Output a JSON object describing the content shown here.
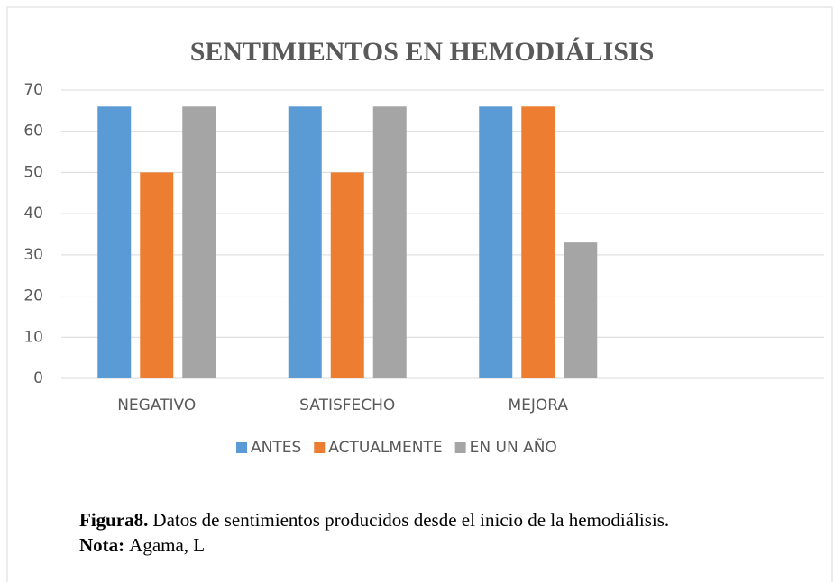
{
  "chart_data": {
    "type": "bar",
    "title": "SENTIMIENTOS EN HEMODIÁLISIS",
    "categories": [
      "NEGATIVO",
      "SATISFECHO",
      "MEJORA",
      null
    ],
    "series": [
      {
        "name": "ANTES",
        "color": "#5b9bd5",
        "values": [
          66,
          66,
          66,
          null
        ]
      },
      {
        "name": "ACTUALMENTE",
        "color": "#ed7d31",
        "values": [
          50,
          50,
          66,
          null
        ]
      },
      {
        "name": "EN UN AÑO",
        "color": "#a5a5a5",
        "values": [
          66,
          66,
          33,
          null
        ]
      }
    ],
    "ylim": [
      0,
      70
    ],
    "yticks": [
      0,
      10,
      20,
      30,
      40,
      50,
      60,
      70
    ],
    "grid": true,
    "legend": "bottom"
  },
  "caption": {
    "label": "Figura8.",
    "text": "Datos de sentimientos producidos desde el inicio de la hemodiálisis."
  },
  "note": {
    "label": "Nota:",
    "text": "Agama, L"
  }
}
